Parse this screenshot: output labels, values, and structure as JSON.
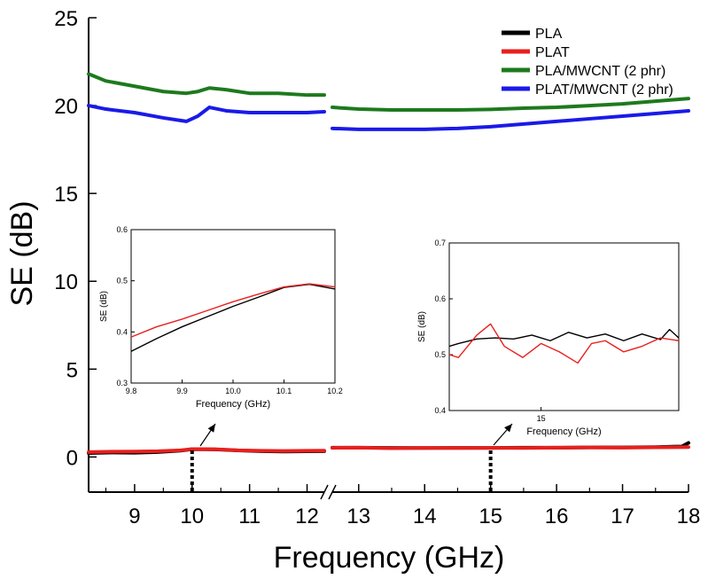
{
  "chart_data": {
    "type": "line",
    "title": "",
    "xlabel": "Frequency (GHz)",
    "ylabel": "SE (dB)",
    "xlim": [
      8.2,
      18
    ],
    "ylim": [
      -2,
      25
    ],
    "x_break": [
      12.3,
      12.6
    ],
    "xticks": [
      9,
      10,
      11,
      12,
      13,
      14,
      15,
      16,
      17,
      18
    ],
    "yticks": [
      0,
      5,
      10,
      15,
      20,
      25
    ],
    "legend": {
      "position": "top-right",
      "entries": [
        "PLA",
        "PLAT",
        "PLA/MWCNT (2 phr)",
        "PLAT/MWCNT (2 phr)"
      ]
    },
    "series": [
      {
        "name": "PLA",
        "color": "#000000",
        "x": [
          8.2,
          8.6,
          9.0,
          9.4,
          9.8,
          10.0,
          10.4,
          10.8,
          11.2,
          11.6,
          12.0,
          12.3,
          12.6,
          13.0,
          13.5,
          14.0,
          14.5,
          15.0,
          15.5,
          16.0,
          16.5,
          17.0,
          17.5,
          17.9,
          18.0
        ],
        "y": [
          0.22,
          0.25,
          0.24,
          0.28,
          0.36,
          0.44,
          0.43,
          0.37,
          0.33,
          0.31,
          0.32,
          0.33,
          0.53,
          0.53,
          0.52,
          0.51,
          0.52,
          0.52,
          0.53,
          0.53,
          0.54,
          0.54,
          0.56,
          0.6,
          0.8
        ]
      },
      {
        "name": "PLAT",
        "color": "#e8201e",
        "x": [
          8.2,
          8.6,
          9.0,
          9.4,
          9.8,
          10.0,
          10.4,
          10.8,
          11.2,
          11.6,
          12.0,
          12.3,
          12.6,
          13.0,
          13.5,
          14.0,
          14.5,
          15.0,
          15.5,
          16.0,
          16.5,
          17.0,
          17.5,
          18.0
        ],
        "y": [
          0.28,
          0.3,
          0.31,
          0.33,
          0.38,
          0.45,
          0.44,
          0.38,
          0.35,
          0.34,
          0.35,
          0.36,
          0.52,
          0.53,
          0.5,
          0.52,
          0.51,
          0.52,
          0.51,
          0.53,
          0.54,
          0.53,
          0.55,
          0.56
        ]
      },
      {
        "name": "PLA/MWCNT (2 phr)",
        "color": "#1d7a1d",
        "x": [
          8.2,
          8.5,
          9.0,
          9.5,
          9.9,
          10.1,
          10.3,
          10.6,
          11.0,
          11.5,
          12.0,
          12.3,
          12.6,
          13.0,
          13.5,
          14.0,
          14.5,
          15.0,
          15.5,
          16.0,
          16.5,
          17.0,
          17.5,
          18.0
        ],
        "y": [
          21.8,
          21.4,
          21.1,
          20.8,
          20.7,
          20.8,
          21.0,
          20.9,
          20.7,
          20.7,
          20.6,
          20.6,
          19.9,
          19.8,
          19.75,
          19.75,
          19.75,
          19.78,
          19.85,
          19.9,
          20.0,
          20.1,
          20.25,
          20.4
        ]
      },
      {
        "name": "PLAT/MWCNT (2 phr)",
        "color": "#1a1ae8",
        "x": [
          8.2,
          8.5,
          9.0,
          9.5,
          9.9,
          10.1,
          10.3,
          10.6,
          11.0,
          11.5,
          12.0,
          12.3,
          12.6,
          13.0,
          13.5,
          14.0,
          14.5,
          15.0,
          15.5,
          16.0,
          16.5,
          17.0,
          17.5,
          18.0
        ],
        "y": [
          20.0,
          19.8,
          19.6,
          19.3,
          19.1,
          19.4,
          19.9,
          19.7,
          19.6,
          19.6,
          19.6,
          19.65,
          18.7,
          18.65,
          18.65,
          18.65,
          18.7,
          18.8,
          18.95,
          19.1,
          19.25,
          19.4,
          19.55,
          19.7
        ]
      }
    ],
    "markers": [
      {
        "x": 10,
        "label": "10"
      },
      {
        "x": 15,
        "label": "15"
      }
    ],
    "insets": [
      {
        "position": "left",
        "xlabel": "Frequency (GHz)",
        "ylabel": "SE (dB)",
        "xlim": [
          9.8,
          10.2
        ],
        "ylim": [
          0.3,
          0.6
        ],
        "xticks": [
          9.8,
          9.9,
          10.0,
          10.1,
          10.2
        ],
        "xtick_labels": [
          "9.8",
          "9.9",
          "10.0",
          "10.1",
          "10.2"
        ],
        "yticks": [
          0.3,
          0.4,
          0.5,
          0.6
        ],
        "ytick_labels": [
          "0.3",
          "0.4",
          "0.5",
          "0.6"
        ],
        "series": [
          {
            "name": "PLA",
            "color": "#000000",
            "x": [
              9.8,
              9.85,
              9.9,
              9.95,
              10.0,
              10.05,
              10.1,
              10.15,
              10.2
            ],
            "y": [
              0.362,
              0.387,
              0.41,
              0.43,
              0.45,
              0.468,
              0.487,
              0.493,
              0.484
            ]
          },
          {
            "name": "PLAT",
            "color": "#e8201e",
            "x": [
              9.8,
              9.85,
              9.9,
              9.95,
              10.0,
              10.05,
              10.1,
              10.15,
              10.2
            ],
            "y": [
              0.39,
              0.41,
              0.425,
              0.442,
              0.459,
              0.474,
              0.488,
              0.494,
              0.488
            ]
          }
        ]
      },
      {
        "position": "right",
        "xlabel": "Frequency (GHz)",
        "ylabel": "SE (dB)",
        "xlim": [
          14.0,
          16.5
        ],
        "ylim": [
          0.4,
          0.7
        ],
        "xticks": [
          15
        ],
        "xtick_labels": [
          "15"
        ],
        "yticks": [
          0.4,
          0.5,
          0.6,
          0.7
        ],
        "ytick_labels": [
          "0.4",
          "0.5",
          "0.6",
          "0.7"
        ],
        "series": [
          {
            "name": "PLA",
            "color": "#000000",
            "x": [
              14.0,
              14.1,
              14.3,
              14.5,
              14.7,
              14.9,
              15.1,
              15.3,
              15.5,
              15.7,
              15.9,
              16.1,
              16.3,
              16.4,
              16.5
            ],
            "y": [
              0.515,
              0.52,
              0.528,
              0.53,
              0.528,
              0.535,
              0.525,
              0.54,
              0.53,
              0.537,
              0.525,
              0.537,
              0.527,
              0.545,
              0.53
            ]
          },
          {
            "name": "PLAT",
            "color": "#e8201e",
            "x": [
              14.0,
              14.1,
              14.3,
              14.45,
              14.6,
              14.8,
              15.0,
              15.2,
              15.4,
              15.55,
              15.7,
              15.9,
              16.1,
              16.3,
              16.5
            ],
            "y": [
              0.5,
              0.495,
              0.535,
              0.555,
              0.515,
              0.495,
              0.52,
              0.505,
              0.485,
              0.52,
              0.525,
              0.505,
              0.515,
              0.53,
              0.525
            ]
          }
        ]
      }
    ]
  }
}
